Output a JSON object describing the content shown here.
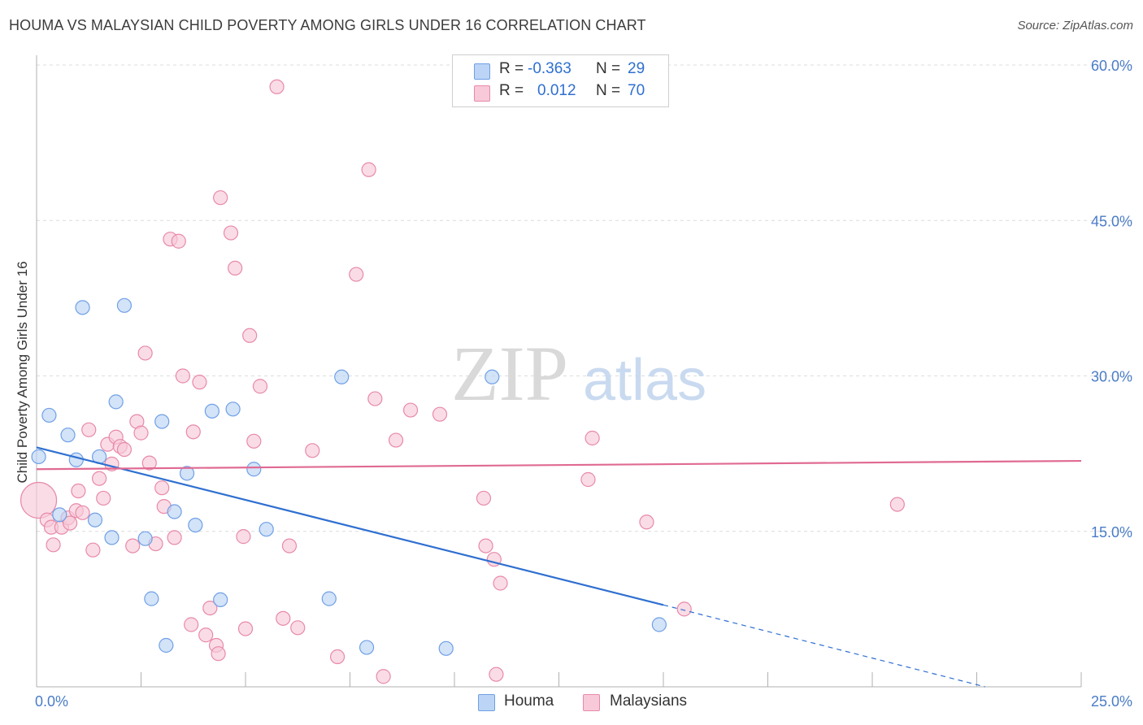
{
  "title": "HOUMA VS MALAYSIAN CHILD POVERTY AMONG GIRLS UNDER 16 CORRELATION CHART",
  "source": "Source: ZipAtlas.com",
  "watermark": {
    "zip": "ZIP",
    "atlas": "atlas"
  },
  "legend": {
    "r_label": "R =",
    "n_label": "N =",
    "rows": [
      {
        "r": "-0.363",
        "n": "29",
        "color": "#6fa0e6",
        "fill": "#bcd4f5"
      },
      {
        "r": "0.012",
        "n": "70",
        "color": "#e88aa8",
        "fill": "#f8c9d8"
      }
    ]
  },
  "bottom_legend": [
    "Houma",
    "Malaysians"
  ],
  "chart_data": {
    "type": "scatter",
    "title": "HOUMA VS MALAYSIAN CHILD POVERTY AMONG GIRLS UNDER 16 CORRELATION CHART",
    "xlabel": "",
    "ylabel": "Child Poverty Among Girls Under 16",
    "xlim": [
      0,
      25
    ],
    "ylim": [
      0,
      60
    ],
    "x_tick_labels": [
      "0.0%",
      "25.0%"
    ],
    "y_tick_labels": [
      "15.0%",
      "30.0%",
      "45.0%",
      "60.0%"
    ],
    "y_ticks": [
      15,
      30,
      45,
      60
    ],
    "grid": "horizontal dashed",
    "legend_position": "top-center",
    "series": [
      {
        "name": "Houma",
        "color": "#6fa0e6",
        "fill": "#bcd4f5",
        "points": [
          [
            0.05,
            22.2
          ],
          [
            0.3,
            26.2
          ],
          [
            0.55,
            16.6
          ],
          [
            0.75,
            24.3
          ],
          [
            0.95,
            21.9
          ],
          [
            1.1,
            36.6
          ],
          [
            1.4,
            16.1
          ],
          [
            1.5,
            22.2
          ],
          [
            1.8,
            14.4
          ],
          [
            1.9,
            27.5
          ],
          [
            2.1,
            36.8
          ],
          [
            2.6,
            14.3
          ],
          [
            2.75,
            8.5
          ],
          [
            3.0,
            25.6
          ],
          [
            3.1,
            4.0
          ],
          [
            3.3,
            16.9
          ],
          [
            3.6,
            20.6
          ],
          [
            3.8,
            15.6
          ],
          [
            4.2,
            26.6
          ],
          [
            4.4,
            8.4
          ],
          [
            4.7,
            26.8
          ],
          [
            5.2,
            21.0
          ],
          [
            5.5,
            15.2
          ],
          [
            7.0,
            8.5
          ],
          [
            7.3,
            29.9
          ],
          [
            7.9,
            3.8
          ],
          [
            9.8,
            3.7
          ],
          [
            10.9,
            29.9
          ],
          [
            14.9,
            6.0
          ]
        ]
      },
      {
        "name": "Malaysians",
        "color": "#e88aa8",
        "fill": "#f8c9d8",
        "points": [
          [
            0.05,
            18.0
          ],
          [
            0.25,
            16.1
          ],
          [
            0.35,
            15.4
          ],
          [
            0.4,
            13.7
          ],
          [
            0.6,
            15.4
          ],
          [
            0.75,
            16.3
          ],
          [
            0.8,
            15.8
          ],
          [
            0.95,
            17.0
          ],
          [
            1.0,
            18.9
          ],
          [
            1.1,
            16.8
          ],
          [
            1.25,
            24.8
          ],
          [
            1.35,
            13.2
          ],
          [
            1.5,
            20.1
          ],
          [
            1.6,
            18.2
          ],
          [
            1.7,
            23.4
          ],
          [
            1.8,
            21.5
          ],
          [
            1.9,
            24.1
          ],
          [
            2.0,
            23.2
          ],
          [
            2.1,
            22.9
          ],
          [
            2.3,
            13.6
          ],
          [
            2.4,
            25.6
          ],
          [
            2.5,
            24.5
          ],
          [
            2.6,
            32.2
          ],
          [
            2.7,
            21.6
          ],
          [
            2.85,
            13.8
          ],
          [
            3.0,
            19.2
          ],
          [
            3.05,
            17.4
          ],
          [
            3.2,
            43.2
          ],
          [
            3.3,
            14.4
          ],
          [
            3.4,
            43.0
          ],
          [
            3.5,
            30.0
          ],
          [
            3.7,
            6.0
          ],
          [
            3.75,
            24.6
          ],
          [
            3.9,
            29.4
          ],
          [
            4.05,
            5.0
          ],
          [
            4.15,
            7.6
          ],
          [
            4.3,
            4.0
          ],
          [
            4.35,
            3.2
          ],
          [
            4.4,
            47.2
          ],
          [
            4.65,
            43.8
          ],
          [
            4.75,
            40.4
          ],
          [
            4.95,
            14.5
          ],
          [
            5.0,
            5.6
          ],
          [
            5.1,
            33.9
          ],
          [
            5.2,
            23.7
          ],
          [
            5.35,
            29.0
          ],
          [
            5.75,
            57.9
          ],
          [
            5.9,
            6.6
          ],
          [
            6.05,
            13.6
          ],
          [
            6.25,
            5.7
          ],
          [
            6.6,
            22.8
          ],
          [
            7.2,
            2.9
          ],
          [
            7.65,
            39.8
          ],
          [
            7.95,
            49.9
          ],
          [
            8.1,
            27.8
          ],
          [
            8.3,
            1.0
          ],
          [
            8.6,
            23.8
          ],
          [
            8.95,
            26.7
          ],
          [
            9.65,
            26.3
          ],
          [
            10.7,
            18.2
          ],
          [
            10.75,
            13.6
          ],
          [
            10.95,
            12.3
          ],
          [
            11.0,
            1.2
          ],
          [
            11.1,
            10.0
          ],
          [
            13.2,
            20.0
          ],
          [
            13.3,
            24.0
          ],
          [
            13.7,
            60.0
          ],
          [
            14.6,
            15.9
          ],
          [
            15.5,
            7.5
          ],
          [
            20.6,
            17.6
          ]
        ]
      }
    ],
    "trend_lines": [
      {
        "series": "Houma",
        "from": [
          0,
          23.1
        ],
        "to": [
          15,
          7.9
        ],
        "extends_dashed_to": [
          22.7,
          0
        ]
      },
      {
        "series": "Malaysians",
        "from": [
          0,
          21.0
        ],
        "to": [
          25,
          21.8
        ]
      }
    ]
  }
}
